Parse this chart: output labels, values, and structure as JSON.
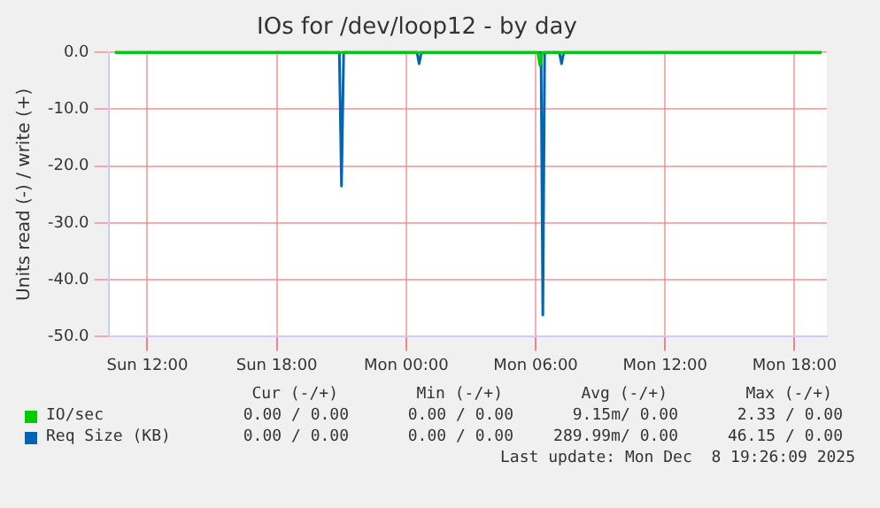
{
  "chart_data": {
    "type": "line",
    "title": "IOs for /dev/loop12 - by day",
    "ylabel": "Units read (-) / write (+)",
    "xlim": [
      "2025-12-07T10:12",
      "2025-12-08T19:30"
    ],
    "xticks": [
      {
        "value": "2025-12-07T12:00",
        "label": "Sun 12:00"
      },
      {
        "value": "2025-12-07T18:00",
        "label": "Sun 18:00"
      },
      {
        "value": "2025-12-08T00:00",
        "label": "Mon 00:00"
      },
      {
        "value": "2025-12-08T06:00",
        "label": "Mon 06:00"
      },
      {
        "value": "2025-12-08T12:00",
        "label": "Mon 12:00"
      },
      {
        "value": "2025-12-08T18:00",
        "label": "Mon 18:00"
      }
    ],
    "ylim": [
      -50,
      0
    ],
    "yticks": [
      {
        "value": -50,
        "label": "-50.0"
      },
      {
        "value": -40,
        "label": "-40.0"
      },
      {
        "value": -30,
        "label": "-30.0"
      },
      {
        "value": -20,
        "label": "-20.0"
      },
      {
        "value": -10,
        "label": "-10.0"
      },
      {
        "value": 0,
        "label": "0.0"
      }
    ],
    "grid": true,
    "legend": "bottom",
    "marker": "none",
    "series": [
      {
        "name": "IO/sec",
        "color": "#00cc00",
        "x": [
          "2025-12-07T10:30",
          "2025-12-08T06:06",
          "2025-12-08T06:12",
          "2025-12-08T06:18",
          "2025-12-08T19:15"
        ],
        "values": [
          0,
          0,
          -2.3,
          0,
          0
        ]
      },
      {
        "name": "Req Size (KB)",
        "color": "#0066b3",
        "x": [
          "2025-12-07T10:30",
          "2025-12-07T20:54",
          "2025-12-07T21:00",
          "2025-12-07T21:06",
          "2025-12-08T00:30",
          "2025-12-08T00:36",
          "2025-12-08T00:42",
          "2025-12-08T06:15",
          "2025-12-08T06:20",
          "2025-12-08T06:25",
          "2025-12-08T07:06",
          "2025-12-08T07:12",
          "2025-12-08T07:18",
          "2025-12-08T19:15"
        ],
        "values": [
          0,
          0,
          -23.5,
          0,
          0,
          -2,
          0,
          0,
          -46.2,
          0,
          0,
          -2,
          0,
          0
        ]
      }
    ],
    "annotations": [
      "Cur (-/+)",
      "Min (-/+)",
      "Avg (-/+)",
      "Max (-/+)",
      "0.00 / 0.00",
      "0.00 / 0.00",
      "9.15m/ 0.00",
      "2.33 / 0.00",
      "0.00 / 0.00",
      "0.00 / 0.00",
      "289.99m/ 0.00",
      "46.15 / 0.00",
      "Last update: Mon Dec  8 19:26:09 2025"
    ]
  }
}
